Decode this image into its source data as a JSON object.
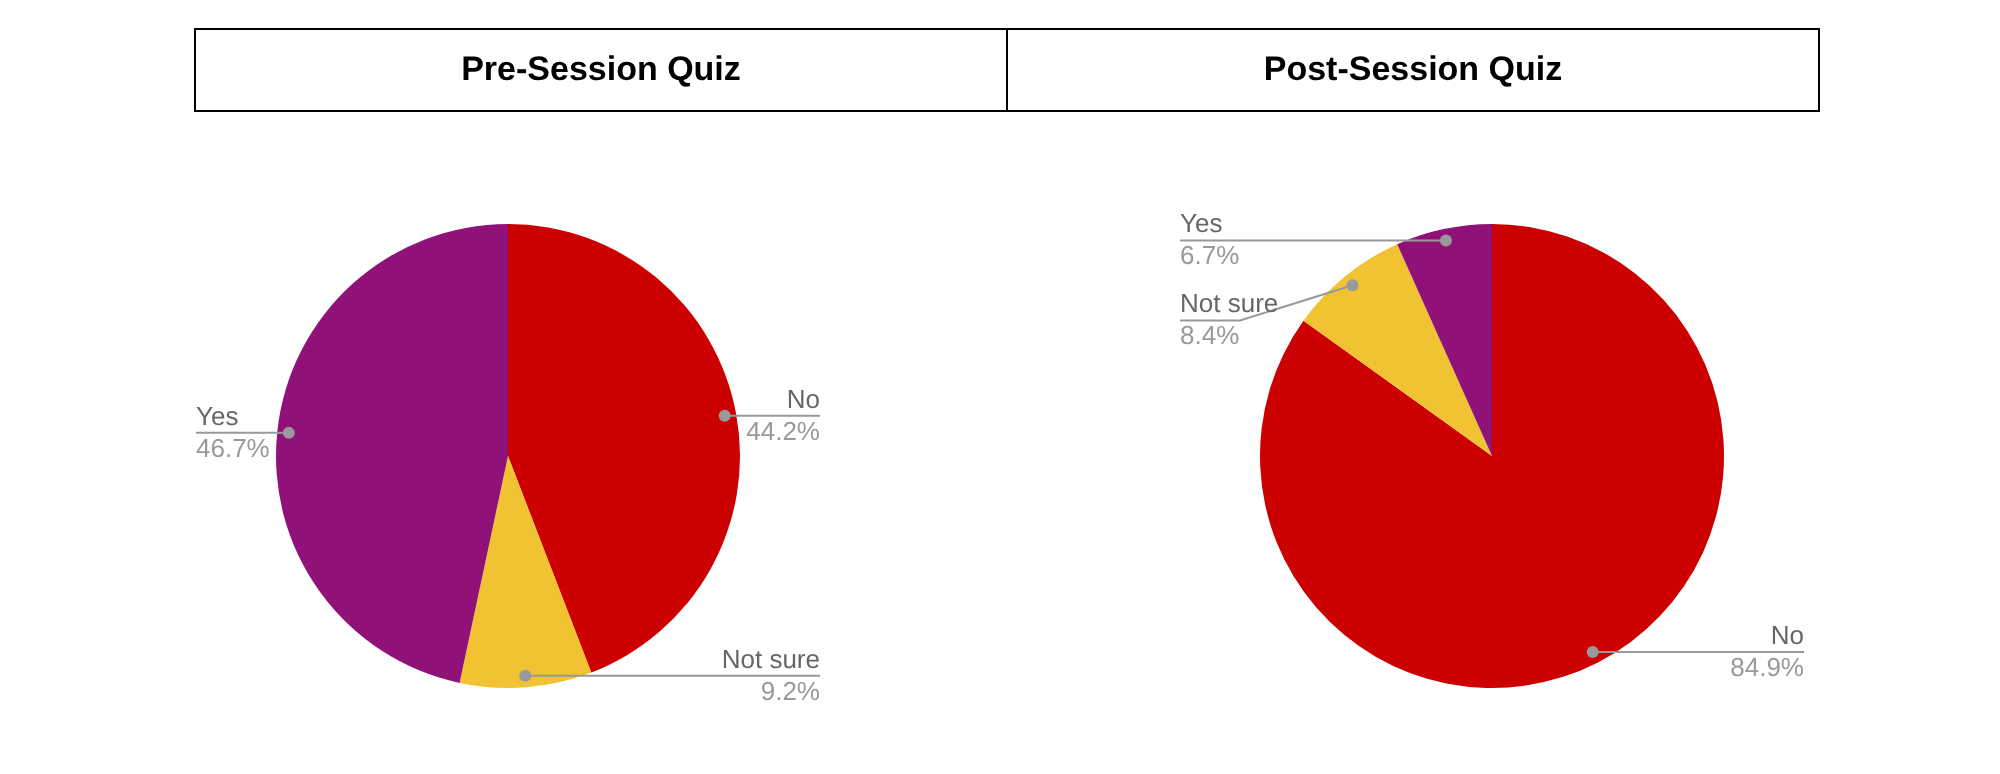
{
  "chart_data": [
    {
      "type": "pie",
      "title": "Pre-Session Quiz",
      "categories": [
        "No",
        "Not sure",
        "Yes"
      ],
      "values": [
        44.2,
        9.2,
        46.7
      ],
      "value_labels": [
        "44.2%",
        "9.2%",
        "46.7%"
      ],
      "colors": [
        "#cc0000",
        "#f1c232",
        "#901279"
      ],
      "legend": false
    },
    {
      "type": "pie",
      "title": "Post-Session Quiz",
      "categories": [
        "No",
        "Not sure",
        "Yes"
      ],
      "values": [
        84.9,
        8.4,
        6.7
      ],
      "value_labels": [
        "84.9%",
        "8.4%",
        "6.7%"
      ],
      "colors": [
        "#cc0000",
        "#f1c232",
        "#901279"
      ],
      "legend": false
    }
  ]
}
